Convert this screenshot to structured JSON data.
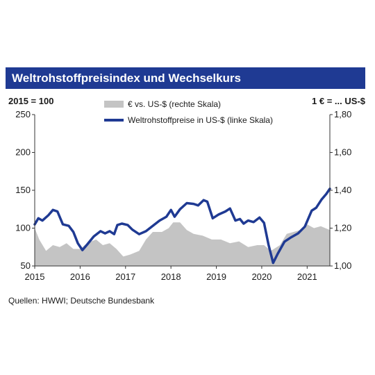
{
  "title": "Weltrohstoffpreisindex und Wechselkurs",
  "subtitle_left": "2015 = 100",
  "subtitle_right": "1 € = ... US-$",
  "source": "Quellen: HWWI; Deutsche Bundesbank",
  "colors": {
    "area": "#c4c4c4",
    "line": "#1f3a93",
    "title_bg": "#1f3a93"
  },
  "chart_data": {
    "type": "line",
    "legend_placement": "top-center",
    "grid": false,
    "x_ticks": [
      "2015",
      "2016",
      "2017",
      "2018",
      "2019",
      "2020",
      "2021"
    ],
    "x_range": [
      2015.0,
      2021.5
    ],
    "y_left": {
      "range": [
        50,
        250
      ],
      "ticks": [
        "50",
        "100",
        "150",
        "200",
        "250"
      ]
    },
    "y_right": {
      "range": [
        1.0,
        1.8
      ],
      "ticks": [
        "1,00",
        "1,20",
        "1,40",
        "1,60",
        "1,80"
      ]
    },
    "series": [
      {
        "name": "€ vs. US-$ (rechte Skala)",
        "type": "area",
        "axis": "right",
        "points": [
          [
            2015.0,
            1.2
          ],
          [
            2015.1,
            1.14
          ],
          [
            2015.25,
            1.08
          ],
          [
            2015.4,
            1.11
          ],
          [
            2015.55,
            1.1
          ],
          [
            2015.7,
            1.12
          ],
          [
            2015.85,
            1.09
          ],
          [
            2016.0,
            1.09
          ],
          [
            2016.15,
            1.12
          ],
          [
            2016.35,
            1.14
          ],
          [
            2016.5,
            1.11
          ],
          [
            2016.65,
            1.12
          ],
          [
            2016.8,
            1.09
          ],
          [
            2016.95,
            1.05
          ],
          [
            2017.1,
            1.06
          ],
          [
            2017.3,
            1.08
          ],
          [
            2017.45,
            1.14
          ],
          [
            2017.6,
            1.18
          ],
          [
            2017.8,
            1.18
          ],
          [
            2017.95,
            1.2
          ],
          [
            2018.05,
            1.23
          ],
          [
            2018.2,
            1.23
          ],
          [
            2018.35,
            1.19
          ],
          [
            2018.5,
            1.17
          ],
          [
            2018.7,
            1.16
          ],
          [
            2018.9,
            1.14
          ],
          [
            2019.1,
            1.14
          ],
          [
            2019.3,
            1.12
          ],
          [
            2019.5,
            1.13
          ],
          [
            2019.7,
            1.1
          ],
          [
            2019.9,
            1.11
          ],
          [
            2020.05,
            1.11
          ],
          [
            2020.2,
            1.08
          ],
          [
            2020.4,
            1.11
          ],
          [
            2020.55,
            1.17
          ],
          [
            2020.7,
            1.18
          ],
          [
            2020.85,
            1.19
          ],
          [
            2021.0,
            1.22
          ],
          [
            2021.15,
            1.2
          ],
          [
            2021.3,
            1.21
          ],
          [
            2021.5,
            1.19
          ]
        ]
      },
      {
        "name": "Weltrohstoffpreise in US-$ (linke Skala)",
        "type": "line",
        "axis": "left",
        "points": [
          [
            2015.0,
            105
          ],
          [
            2015.08,
            113
          ],
          [
            2015.17,
            110
          ],
          [
            2015.3,
            117
          ],
          [
            2015.4,
            124
          ],
          [
            2015.5,
            122
          ],
          [
            2015.62,
            105
          ],
          [
            2015.75,
            103
          ],
          [
            2015.85,
            95
          ],
          [
            2015.95,
            80
          ],
          [
            2016.05,
            71
          ],
          [
            2016.15,
            78
          ],
          [
            2016.3,
            89
          ],
          [
            2016.45,
            96
          ],
          [
            2016.55,
            93
          ],
          [
            2016.65,
            96
          ],
          [
            2016.75,
            92
          ],
          [
            2016.82,
            104
          ],
          [
            2016.92,
            106
          ],
          [
            2017.05,
            104
          ],
          [
            2017.15,
            98
          ],
          [
            2017.3,
            92
          ],
          [
            2017.45,
            96
          ],
          [
            2017.6,
            103
          ],
          [
            2017.75,
            110
          ],
          [
            2017.9,
            115
          ],
          [
            2018.0,
            124
          ],
          [
            2018.08,
            115
          ],
          [
            2018.2,
            125
          ],
          [
            2018.35,
            133
          ],
          [
            2018.5,
            132
          ],
          [
            2018.6,
            130
          ],
          [
            2018.72,
            137
          ],
          [
            2018.8,
            135
          ],
          [
            2018.92,
            113
          ],
          [
            2019.05,
            118
          ],
          [
            2019.2,
            122
          ],
          [
            2019.3,
            126
          ],
          [
            2019.42,
            110
          ],
          [
            2019.52,
            112
          ],
          [
            2019.6,
            106
          ],
          [
            2019.7,
            110
          ],
          [
            2019.82,
            108
          ],
          [
            2019.95,
            114
          ],
          [
            2020.05,
            107
          ],
          [
            2020.15,
            78
          ],
          [
            2020.25,
            54
          ],
          [
            2020.35,
            66
          ],
          [
            2020.5,
            82
          ],
          [
            2020.65,
            88
          ],
          [
            2020.8,
            93
          ],
          [
            2020.95,
            102
          ],
          [
            2021.1,
            123
          ],
          [
            2021.2,
            127
          ],
          [
            2021.32,
            138
          ],
          [
            2021.42,
            145
          ],
          [
            2021.5,
            152
          ]
        ]
      }
    ]
  }
}
